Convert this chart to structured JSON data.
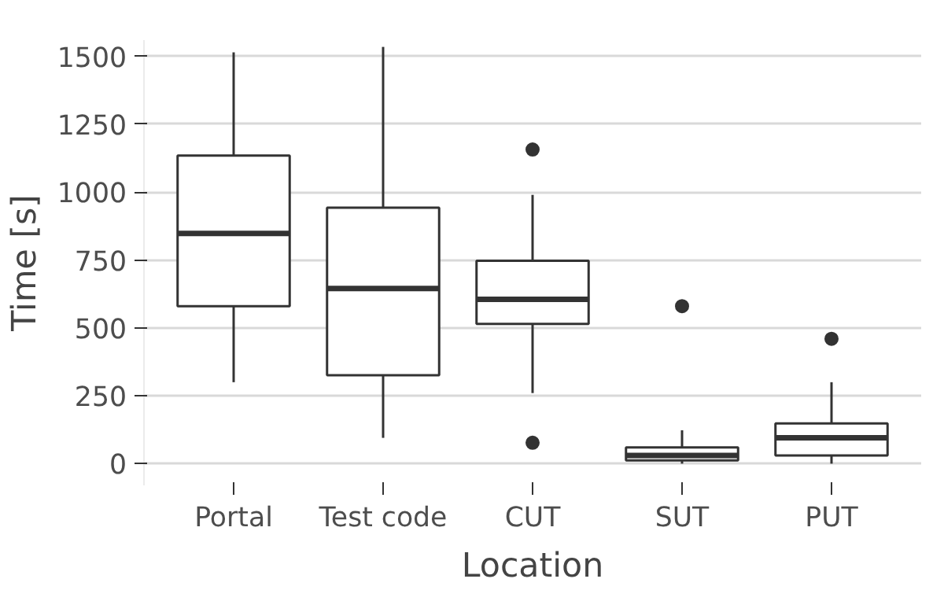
{
  "chart_data": {
    "type": "box",
    "xlabel": "Location",
    "ylabel": "Time [s]",
    "categories": [
      "Portal",
      "Test code",
      "CUT",
      "SUT",
      "PUT"
    ],
    "boxes": [
      {
        "low": 300,
        "q1": 580,
        "median": 848,
        "q3": 1135,
        "high": 1515
      },
      {
        "low": 95,
        "q1": 326,
        "median": 645,
        "q3": 943,
        "high": 1535
      },
      {
        "low": 260,
        "q1": 515,
        "median": 605,
        "q3": 747,
        "high": 990,
        "outliers": [
          1157,
          77
        ]
      },
      {
        "low": 0,
        "q1": 12,
        "median": 30,
        "q3": 60,
        "high": 123,
        "outliers": [
          580
        ]
      },
      {
        "low": 0,
        "q1": 30,
        "median": 95,
        "q3": 148,
        "high": 300,
        "outliers": [
          460
        ]
      }
    ],
    "ylim": [
      -80,
      1560
    ],
    "yticks": [
      0,
      250,
      500,
      750,
      1000,
      1250,
      1500
    ],
    "grid": "y",
    "color": "#333333"
  }
}
